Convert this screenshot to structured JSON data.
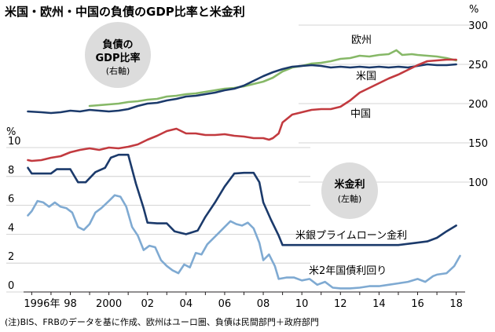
{
  "chart_data": {
    "type": "line",
    "title": "米国・欧州・中国の負債のGDP比率と米金利",
    "note": "(注)BIS、FRBのデータを基に作成、欧州はユーロ圏、負債は民間部門＋政府部門",
    "x_ticks": [
      "1996年",
      "98",
      "2000",
      "02",
      "04",
      "06",
      "08",
      "10",
      "12",
      "14",
      "16",
      "18"
    ],
    "xlim": [
      1995.7,
      2018.3
    ],
    "right_axis": {
      "unit": "%",
      "ticks": [
        100,
        150,
        200,
        250,
        300
      ],
      "ylim": [
        100,
        300
      ],
      "badge": {
        "title_line1": "負債の",
        "title_line2": "GDP比率",
        "sub": "(右軸)"
      }
    },
    "left_axis": {
      "unit": "%",
      "ticks": [
        0,
        2,
        4,
        6,
        8,
        10
      ],
      "ylim": [
        0,
        10
      ],
      "badge": {
        "title": "米金利",
        "sub": "(左軸)"
      }
    },
    "series_right": [
      {
        "name": "欧州",
        "color": "#86b867",
        "points": [
          [
            1999.0,
            197
          ],
          [
            1999.5,
            198
          ],
          [
            2000.0,
            199
          ],
          [
            2000.5,
            200
          ],
          [
            2001.0,
            202
          ],
          [
            2001.5,
            203
          ],
          [
            2002.0,
            205
          ],
          [
            2002.5,
            206
          ],
          [
            2003.0,
            209
          ],
          [
            2003.5,
            210
          ],
          [
            2004.0,
            212
          ],
          [
            2004.5,
            213
          ],
          [
            2005.0,
            215
          ],
          [
            2005.5,
            217
          ],
          [
            2006.0,
            219
          ],
          [
            2006.5,
            220
          ],
          [
            2007.0,
            222
          ],
          [
            2007.5,
            225
          ],
          [
            2008.0,
            228
          ],
          [
            2008.5,
            233
          ],
          [
            2009.0,
            241
          ],
          [
            2009.5,
            246
          ],
          [
            2010.0,
            248
          ],
          [
            2010.5,
            251
          ],
          [
            2011.0,
            252
          ],
          [
            2011.5,
            254
          ],
          [
            2012.0,
            257
          ],
          [
            2012.5,
            258
          ],
          [
            2013.0,
            261
          ],
          [
            2013.5,
            260
          ],
          [
            2014.0,
            262
          ],
          [
            2014.5,
            263
          ],
          [
            2014.9,
            268
          ],
          [
            2015.2,
            262
          ],
          [
            2015.7,
            263
          ],
          [
            2016.0,
            262
          ],
          [
            2016.5,
            261
          ],
          [
            2017.0,
            260
          ],
          [
            2017.5,
            258
          ],
          [
            2018.0,
            255
          ]
        ]
      },
      {
        "name": "米国",
        "color": "#1b3a6b",
        "points": [
          [
            1995.8,
            190
          ],
          [
            1996.5,
            189
          ],
          [
            1997.0,
            188
          ],
          [
            1997.5,
            189
          ],
          [
            1998.0,
            191
          ],
          [
            1998.5,
            190
          ],
          [
            1999.0,
            192
          ],
          [
            1999.5,
            191
          ],
          [
            2000.0,
            190
          ],
          [
            2000.5,
            191
          ],
          [
            2001.0,
            193
          ],
          [
            2001.5,
            197
          ],
          [
            2002.0,
            200
          ],
          [
            2002.5,
            201
          ],
          [
            2003.0,
            204
          ],
          [
            2003.5,
            206
          ],
          [
            2004.0,
            209
          ],
          [
            2004.5,
            210
          ],
          [
            2005.0,
            212
          ],
          [
            2005.5,
            214
          ],
          [
            2006.0,
            217
          ],
          [
            2006.5,
            219
          ],
          [
            2007.0,
            223
          ],
          [
            2007.5,
            229
          ],
          [
            2008.0,
            235
          ],
          [
            2008.5,
            240
          ],
          [
            2009.0,
            244
          ],
          [
            2009.5,
            247
          ],
          [
            2010.0,
            248
          ],
          [
            2010.5,
            249
          ],
          [
            2011.0,
            248
          ],
          [
            2011.5,
            246
          ],
          [
            2012.0,
            247
          ],
          [
            2012.5,
            246
          ],
          [
            2013.0,
            247
          ],
          [
            2013.5,
            246
          ],
          [
            2014.0,
            247
          ],
          [
            2014.5,
            246
          ],
          [
            2015.0,
            247
          ],
          [
            2015.5,
            246
          ],
          [
            2016.0,
            248
          ],
          [
            2016.5,
            250
          ],
          [
            2017.0,
            249
          ],
          [
            2017.5,
            249
          ],
          [
            2018.0,
            250
          ]
        ]
      },
      {
        "name": "中国",
        "color": "#c23a3f",
        "points": [
          [
            1995.8,
            128
          ],
          [
            1996.0,
            127
          ],
          [
            1996.5,
            128
          ],
          [
            1997.0,
            131
          ],
          [
            1997.5,
            133
          ],
          [
            1998.0,
            138
          ],
          [
            1998.5,
            141
          ],
          [
            1999.0,
            143
          ],
          [
            1999.5,
            141
          ],
          [
            2000.0,
            144
          ],
          [
            2000.5,
            143
          ],
          [
            2001.0,
            145
          ],
          [
            2001.5,
            148
          ],
          [
            2002.0,
            154
          ],
          [
            2002.5,
            159
          ],
          [
            2003.0,
            165
          ],
          [
            2003.5,
            168
          ],
          [
            2004.0,
            162
          ],
          [
            2004.5,
            162
          ],
          [
            2005.0,
            160
          ],
          [
            2005.5,
            160
          ],
          [
            2006.0,
            161
          ],
          [
            2006.5,
            159
          ],
          [
            2007.0,
            158
          ],
          [
            2007.5,
            156
          ],
          [
            2008.0,
            156
          ],
          [
            2008.3,
            154
          ],
          [
            2008.5,
            156
          ],
          [
            2008.8,
            162
          ],
          [
            2009.0,
            176
          ],
          [
            2009.5,
            186
          ],
          [
            2010.0,
            189
          ],
          [
            2010.5,
            192
          ],
          [
            2011.0,
            193
          ],
          [
            2011.5,
            193
          ],
          [
            2012.0,
            196
          ],
          [
            2012.5,
            204
          ],
          [
            2013.0,
            214
          ],
          [
            2013.5,
            220
          ],
          [
            2014.0,
            226
          ],
          [
            2014.5,
            232
          ],
          [
            2015.0,
            237
          ],
          [
            2015.5,
            243
          ],
          [
            2016.0,
            249
          ],
          [
            2016.5,
            254
          ],
          [
            2017.0,
            255
          ],
          [
            2017.5,
            256
          ],
          [
            2018.0,
            256
          ]
        ]
      }
    ],
    "series_left": [
      {
        "name": "米銀プライムローン金利",
        "color": "#1b3a6b",
        "points": [
          [
            1995.8,
            8.6
          ],
          [
            1996.0,
            8.2
          ],
          [
            1997.0,
            8.2
          ],
          [
            1997.3,
            8.5
          ],
          [
            1998.0,
            8.5
          ],
          [
            1998.4,
            7.6
          ],
          [
            1998.8,
            7.6
          ],
          [
            1999.3,
            8.3
          ],
          [
            1999.8,
            8.6
          ],
          [
            2000.1,
            9.3
          ],
          [
            2000.5,
            9.5
          ],
          [
            2001.0,
            9.5
          ],
          [
            2001.4,
            7.5
          ],
          [
            2001.8,
            5.8
          ],
          [
            2002.0,
            4.8
          ],
          [
            2002.5,
            4.75
          ],
          [
            2003.0,
            4.75
          ],
          [
            2003.4,
            4.2
          ],
          [
            2004.0,
            4.0
          ],
          [
            2004.6,
            4.25
          ],
          [
            2005.0,
            5.2
          ],
          [
            2005.5,
            6.2
          ],
          [
            2006.0,
            7.3
          ],
          [
            2006.5,
            8.2
          ],
          [
            2007.0,
            8.25
          ],
          [
            2007.5,
            8.25
          ],
          [
            2007.8,
            7.6
          ],
          [
            2008.0,
            6.2
          ],
          [
            2008.4,
            5.0
          ],
          [
            2008.8,
            3.9
          ],
          [
            2009.0,
            3.25
          ],
          [
            2010.0,
            3.25
          ],
          [
            2011.0,
            3.25
          ],
          [
            2012.0,
            3.25
          ],
          [
            2013.0,
            3.25
          ],
          [
            2014.0,
            3.25
          ],
          [
            2015.0,
            3.25
          ],
          [
            2015.9,
            3.4
          ],
          [
            2016.5,
            3.5
          ],
          [
            2017.0,
            3.75
          ],
          [
            2017.5,
            4.2
          ],
          [
            2018.0,
            4.6
          ]
        ]
      },
      {
        "name": "米2年国債利回り",
        "color": "#7faad2",
        "points": [
          [
            1995.8,
            5.3
          ],
          [
            1996.0,
            5.6
          ],
          [
            1996.3,
            6.3
          ],
          [
            1996.6,
            6.2
          ],
          [
            1996.9,
            5.9
          ],
          [
            1997.2,
            6.2
          ],
          [
            1997.5,
            5.9
          ],
          [
            1997.8,
            5.8
          ],
          [
            1998.1,
            5.5
          ],
          [
            1998.4,
            4.5
          ],
          [
            1998.7,
            4.3
          ],
          [
            1999.0,
            4.7
          ],
          [
            1999.3,
            5.5
          ],
          [
            1999.6,
            5.8
          ],
          [
            2000.0,
            6.3
          ],
          [
            2000.3,
            6.7
          ],
          [
            2000.6,
            6.6
          ],
          [
            2000.9,
            5.9
          ],
          [
            2001.2,
            4.5
          ],
          [
            2001.5,
            3.9
          ],
          [
            2001.8,
            2.9
          ],
          [
            2002.1,
            3.2
          ],
          [
            2002.4,
            3.1
          ],
          [
            2002.7,
            2.2
          ],
          [
            2003.0,
            1.8
          ],
          [
            2003.3,
            1.5
          ],
          [
            2003.6,
            1.3
          ],
          [
            2003.9,
            1.9
          ],
          [
            2004.2,
            1.7
          ],
          [
            2004.5,
            2.7
          ],
          [
            2004.8,
            2.6
          ],
          [
            2005.1,
            3.3
          ],
          [
            2005.4,
            3.7
          ],
          [
            2005.7,
            4.1
          ],
          [
            2006.0,
            4.5
          ],
          [
            2006.3,
            4.9
          ],
          [
            2006.6,
            4.7
          ],
          [
            2006.9,
            4.6
          ],
          [
            2007.2,
            4.8
          ],
          [
            2007.5,
            4.4
          ],
          [
            2007.8,
            3.4
          ],
          [
            2008.0,
            2.2
          ],
          [
            2008.3,
            2.6
          ],
          [
            2008.6,
            1.8
          ],
          [
            2008.8,
            0.9
          ],
          [
            2009.2,
            1.0
          ],
          [
            2009.6,
            1.0
          ],
          [
            2010.0,
            0.8
          ],
          [
            2010.4,
            0.9
          ],
          [
            2010.8,
            0.5
          ],
          [
            2011.2,
            0.7
          ],
          [
            2011.6,
            0.3
          ],
          [
            2012.0,
            0.25
          ],
          [
            2012.5,
            0.25
          ],
          [
            2013.0,
            0.3
          ],
          [
            2013.5,
            0.4
          ],
          [
            2014.0,
            0.4
          ],
          [
            2014.5,
            0.5
          ],
          [
            2015.0,
            0.6
          ],
          [
            2015.5,
            0.7
          ],
          [
            2016.0,
            0.9
          ],
          [
            2016.4,
            0.7
          ],
          [
            2016.8,
            1.1
          ],
          [
            2017.0,
            1.2
          ],
          [
            2017.5,
            1.3
          ],
          [
            2017.9,
            1.8
          ],
          [
            2018.2,
            2.5
          ]
        ]
      }
    ]
  }
}
